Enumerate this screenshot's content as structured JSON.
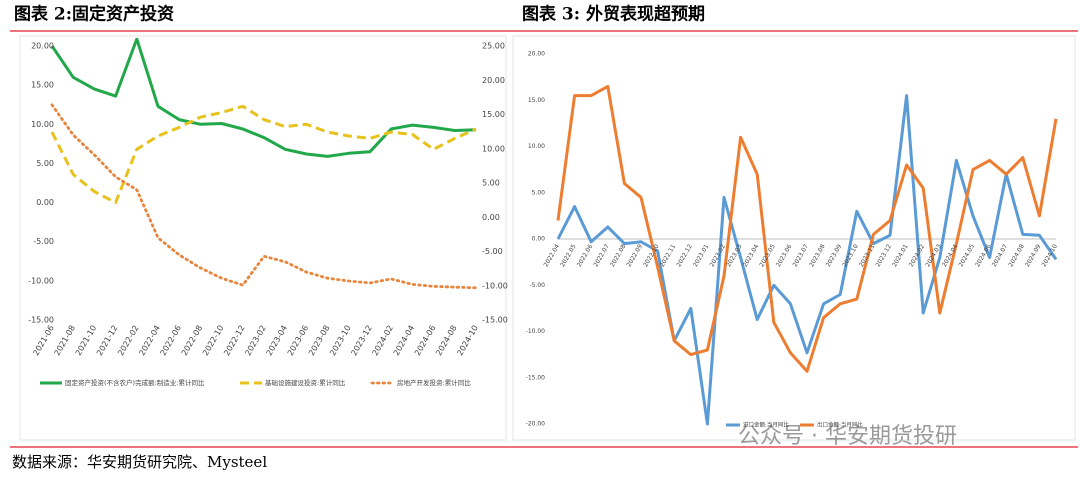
{
  "source": "数据来源：华安期货研究院、Mysteel",
  "watermark": "公众号 · 华安期货投研",
  "chart_data": [
    {
      "type": "line",
      "title": "图表 2:固定资产投资",
      "categories": [
        "2021-06",
        "2021-08",
        "2021-10",
        "2021-12",
        "2022-02",
        "2022-04",
        "2022-06",
        "2022-08",
        "2022-10",
        "2022-12",
        "2023-02",
        "2023-04",
        "2023-06",
        "2023-08",
        "2023-10",
        "2023-12",
        "2024-02",
        "2024-04",
        "2024-06",
        "2024-08",
        "2024-10"
      ],
      "ylim": [
        -15,
        20
      ],
      "yticks": [
        {
          "value": 20,
          "label": "20.00"
        },
        {
          "value": 15,
          "label": "15.00"
        },
        {
          "value": 10,
          "label": "10.00"
        },
        {
          "value": 5,
          "label": "5.00"
        },
        {
          "value": 0,
          "label": "0.00"
        },
        {
          "value": -5,
          "label": "-5.00"
        },
        {
          "value": -10,
          "label": "-10.00"
        },
        {
          "value": -15,
          "label": "-15.00"
        }
      ],
      "y2lim": [
        -15,
        25
      ],
      "y2ticks": [
        {
          "value": 25,
          "label": "25.00"
        },
        {
          "value": 20,
          "label": "20.00"
        },
        {
          "value": 15,
          "label": "15.00"
        },
        {
          "value": 10,
          "label": "10.00"
        },
        {
          "value": 5,
          "label": "5.00"
        },
        {
          "value": 0,
          "label": "0.00"
        },
        {
          "value": -5,
          "label": "-5.00"
        },
        {
          "value": -10,
          "label": "-10.00"
        },
        {
          "value": -15,
          "label": "-15.00"
        }
      ],
      "series": [
        {
          "name": "固定资产投资(不含农户)完成额:制造业:累计同比",
          "color": "#22a84a",
          "style": "solid",
          "values": [
            20,
            16,
            14.5,
            13.6,
            20.9,
            12.3,
            10.6,
            10,
            10.1,
            9.4,
            8.3,
            6.8,
            6.2,
            5.9,
            6.3,
            6.5,
            9.4,
            9.9,
            9.6,
            9.2,
            9.3
          ]
        },
        {
          "name": "基础设施建设投资:累计同比",
          "color": "#e8c21c",
          "style": "dashed",
          "values": [
            9,
            3.6,
            1.4,
            0,
            6.8,
            8.5,
            9.6,
            10.9,
            11.5,
            12.3,
            10.6,
            9.7,
            10,
            9,
            8.5,
            8.2,
            9,
            8.7,
            6.8,
            8.2,
            9.4
          ]
        },
        {
          "name": "房地产开发投资:累计同比",
          "color": "#e8843c",
          "style": "dotted",
          "axis": "y2",
          "values": [
            16.4,
            12,
            9.1,
            5.9,
            4,
            -3,
            -5.5,
            -7.4,
            -8.9,
            -9.9,
            -5.7,
            -6.5,
            -8,
            -8.9,
            -9.3,
            -9.6,
            -9,
            -9.8,
            -10.1,
            -10.2,
            -10.3
          ]
        }
      ]
    },
    {
      "type": "line",
      "title": "图表 3: 外贸表现超预期",
      "categories": [
        "2022.04",
        "2022.05",
        "2022.06",
        "2022.07",
        "2022.08",
        "2022.09",
        "2022.10",
        "2022.11",
        "2022.12",
        "2023.01",
        "2023.02",
        "2023.03",
        "2023.04",
        "2023.05",
        "2023.06",
        "2023.07",
        "2023.08",
        "2023.09",
        "2023.10",
        "2023.11",
        "2023.12",
        "2024.01",
        "2024.02",
        "2024.03",
        "2024.04",
        "2024.05",
        "2024.06",
        "2024.07",
        "2024.08",
        "2024.09",
        "2024.10"
      ],
      "ylim": [
        -20,
        20
      ],
      "yticks": [
        {
          "value": 20,
          "label": "20.00"
        },
        {
          "value": 15,
          "label": "15.00"
        },
        {
          "value": 10,
          "label": "10.00"
        },
        {
          "value": 5,
          "label": "5.00"
        },
        {
          "value": 0,
          "label": "0.00"
        },
        {
          "value": -5,
          "label": "-5.00"
        },
        {
          "value": -10,
          "label": "-10.00"
        },
        {
          "value": -15,
          "label": "-15.00"
        },
        {
          "value": -20,
          "label": "-20.00"
        }
      ],
      "series": [
        {
          "name": "进口金额:当月同比",
          "color": "#5b9bd5",
          "style": "solid",
          "values": [
            0,
            3.5,
            -0.3,
            1.3,
            -0.5,
            -0.3,
            -1.3,
            -11,
            -7.5,
            -20,
            4.5,
            -2,
            -8.7,
            -5,
            -7,
            -12.3,
            -7,
            -6,
            3,
            -0.5,
            0.4,
            15.5,
            -8,
            -2,
            8.5,
            2.5,
            -2,
            7,
            0.5,
            0.4,
            -2.2
          ]
        },
        {
          "name": "出口金额:当月同比",
          "color": "#ed7d31",
          "style": "solid",
          "values": [
            2,
            15.5,
            15.5,
            16.5,
            6,
            4.5,
            -3,
            -11,
            -12.5,
            -12,
            -4,
            11,
            7,
            -9,
            -12.3,
            -14.3,
            -8.5,
            -7,
            -6.5,
            0.5,
            2,
            8,
            5.5,
            -8,
            -0.5,
            7.5,
            8.5,
            7,
            8.8,
            2.5,
            13
          ]
        }
      ]
    }
  ]
}
